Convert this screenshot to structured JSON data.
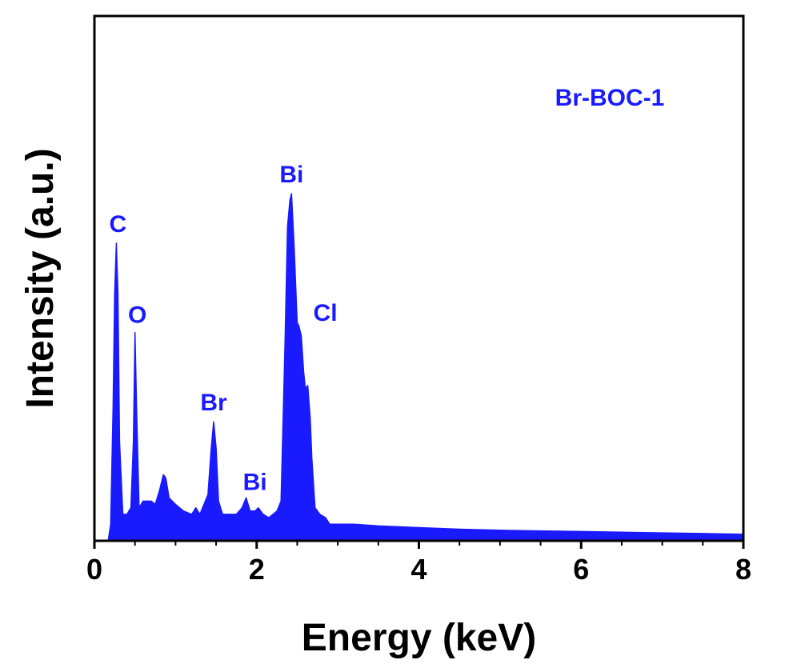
{
  "chart_data": {
    "type": "area",
    "xlabel": "Energy (keV)",
    "ylabel": "Intensity (a.u.)",
    "xlim": [
      0,
      8
    ],
    "ylim": [
      0,
      100
    ],
    "grid": false,
    "y_tick_labels_shown": false,
    "x_ticks": [
      "0",
      "2",
      "4",
      "6",
      "8"
    ],
    "legend_position": "top-right",
    "series": [
      {
        "name": "Br-BOC-1",
        "color": "#1a1aff",
        "x": [
          0.17,
          0.2,
          0.23,
          0.25,
          0.27,
          0.29,
          0.31,
          0.35,
          0.4,
          0.45,
          0.48,
          0.5,
          0.52,
          0.55,
          0.6,
          0.65,
          0.7,
          0.75,
          0.8,
          0.85,
          0.88,
          0.92,
          0.96,
          1.0,
          1.05,
          1.1,
          1.2,
          1.25,
          1.3,
          1.4,
          1.44,
          1.47,
          1.5,
          1.53,
          1.58,
          1.65,
          1.75,
          1.82,
          1.87,
          1.92,
          1.98,
          2.02,
          2.08,
          2.15,
          2.25,
          2.3,
          2.35,
          2.38,
          2.41,
          2.43,
          2.46,
          2.5,
          2.52,
          2.55,
          2.58,
          2.6,
          2.63,
          2.66,
          2.68,
          2.72,
          2.78,
          2.85,
          2.9,
          3.0,
          3.2,
          3.5,
          4.0,
          4.5,
          5.0,
          5.5,
          6.0,
          6.5,
          7.0,
          7.5,
          8.0
        ],
        "y": [
          0,
          5,
          40,
          75,
          90,
          75,
          30,
          8,
          8,
          10,
          30,
          63,
          40,
          10,
          12,
          12,
          12,
          11,
          15,
          20,
          19,
          13,
          12,
          11,
          10,
          9,
          8,
          10,
          8,
          14,
          28,
          36,
          28,
          12,
          8,
          8,
          8,
          10,
          13,
          9,
          9,
          10,
          8,
          7,
          9,
          12,
          60,
          95,
          103,
          105,
          90,
          66,
          65,
          62,
          51,
          46,
          47,
          37,
          25,
          10,
          8,
          7,
          5,
          5,
          5,
          4.5,
          4,
          3.5,
          3.2,
          3,
          2.8,
          2.6,
          2.4,
          2.2,
          2
        ]
      }
    ],
    "annotations": [
      {
        "text": "C",
        "x": 0.27,
        "y": 90
      },
      {
        "text": "O",
        "x": 0.5,
        "y": 63
      },
      {
        "text": "Br",
        "x": 1.47,
        "y": 36
      },
      {
        "text": "Bi",
        "x": 1.9,
        "y": 13
      },
      {
        "text": "Bi",
        "x": 2.43,
        "y": 105
      },
      {
        "text": "Cl",
        "x": 2.58,
        "y": 66
      }
    ]
  }
}
